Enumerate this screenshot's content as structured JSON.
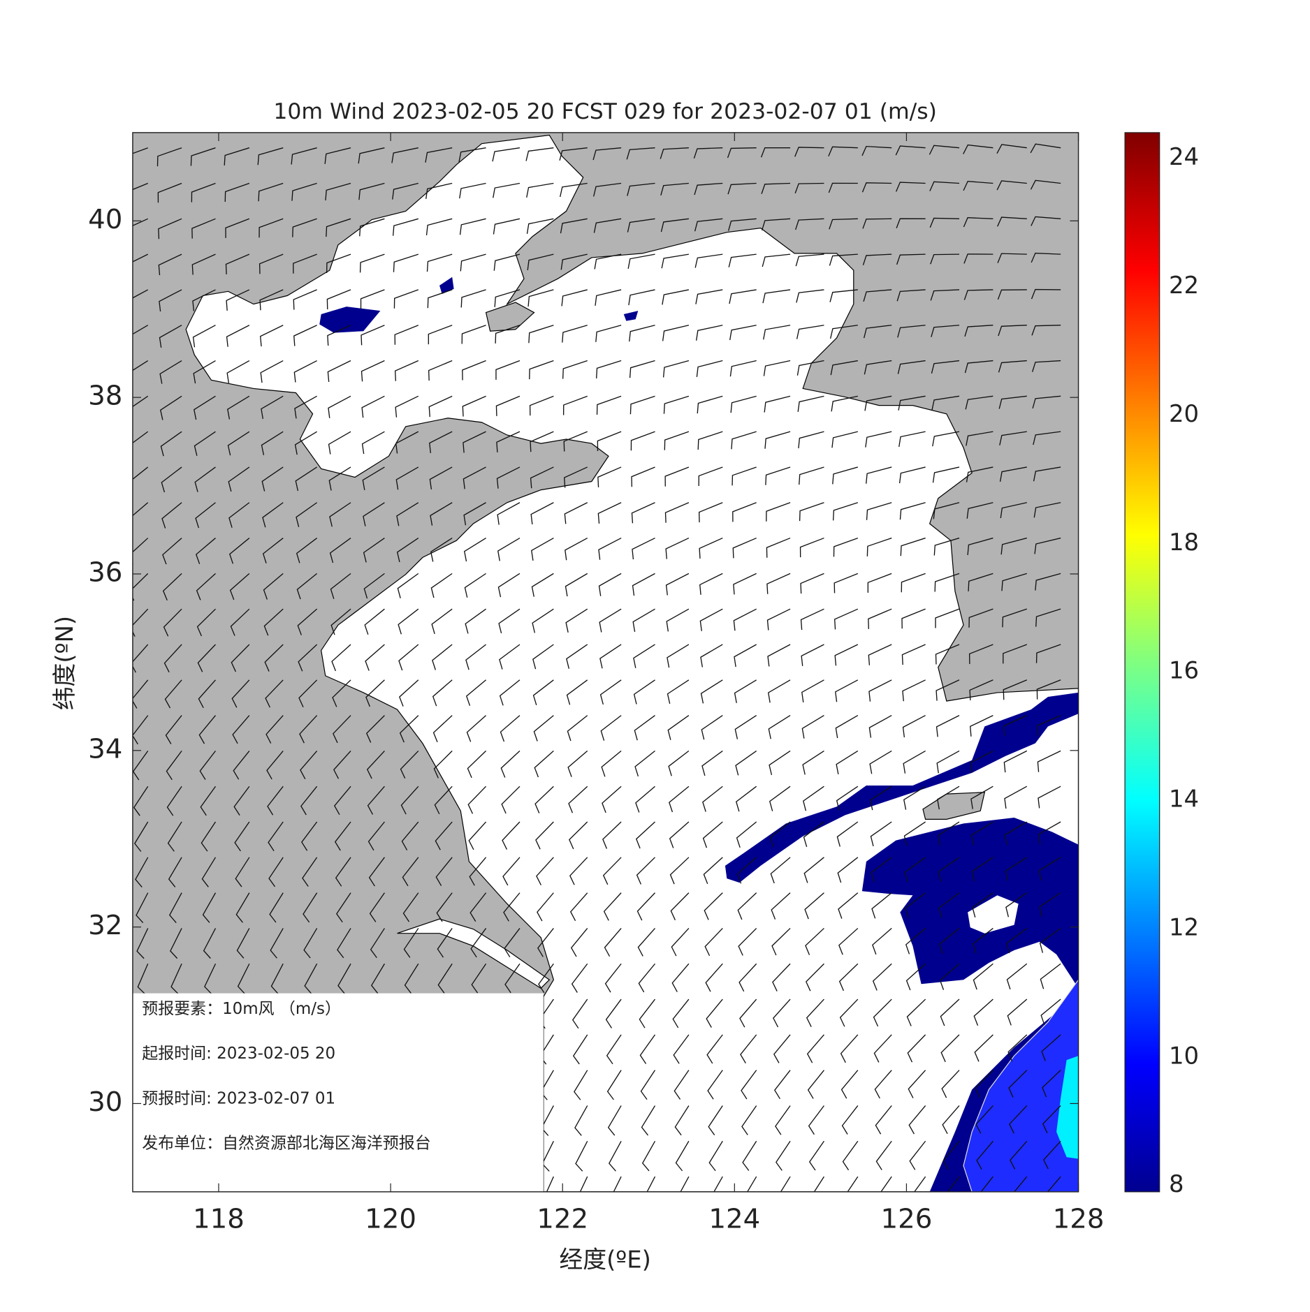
{
  "header": {
    "title": "10m Wind 2023-02-05 20 FCST 029 for 2023-02-07 01 (m/s)"
  },
  "map": {
    "xlabel": "经度(ºE)",
    "ylabel": "纬度(ºN)",
    "xlim": [
      117,
      128
    ],
    "ylim": [
      29,
      41
    ],
    "xticks": [
      118,
      120,
      122,
      124,
      126,
      128
    ],
    "yticks": [
      30,
      32,
      34,
      36,
      38,
      40
    ]
  },
  "colorbar": {
    "clim": [
      7.9,
      24.4
    ],
    "ticks": [
      8,
      10,
      12,
      14,
      16,
      18,
      20,
      22,
      24
    ]
  },
  "info": [
    "预报要素：10m风 （m/s）",
    "起报时间: 2023-02-05 20",
    "预报时间: 2023-02-07 01",
    "发布单位：自然资源部北海区海洋预报台"
  ]
}
